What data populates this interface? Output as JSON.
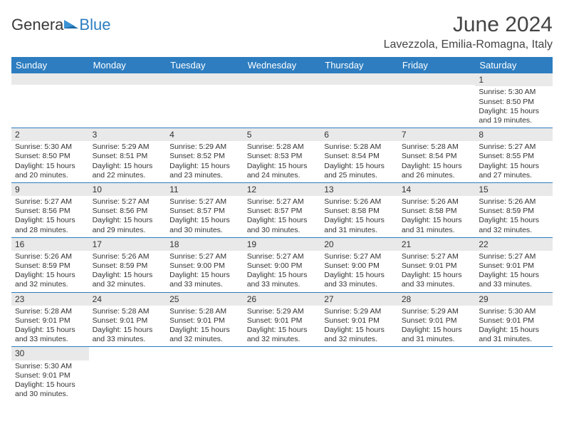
{
  "brand": {
    "part1": "Genera",
    "part2": "Blue"
  },
  "title": "June 2024",
  "location": "Lavezzola, Emilia-Romagna, Italy",
  "colors": {
    "header_bg": "#2d7dc0",
    "header_fg": "#ffffff",
    "daynum_bg": "#e9e9e9",
    "rule": "#2d7dc0",
    "text": "#3a3a3a",
    "logo_blue": "#2d7dc0",
    "page_bg": "#ffffff"
  },
  "typography": {
    "title_fontsize": 30,
    "location_fontsize": 16,
    "dayheader_fontsize": 13,
    "daynum_fontsize": 12,
    "body_fontsize": 10.5
  },
  "layout": {
    "columns": 7,
    "rows": 6,
    "first_weekday": "Sunday"
  },
  "day_headers": [
    "Sunday",
    "Monday",
    "Tuesday",
    "Wednesday",
    "Thursday",
    "Friday",
    "Saturday"
  ],
  "weeks": [
    [
      null,
      null,
      null,
      null,
      null,
      null,
      {
        "n": "1",
        "sunrise": "Sunrise: 5:30 AM",
        "sunset": "Sunset: 8:50 PM",
        "daylight": "Daylight: 15 hours and 19 minutes."
      }
    ],
    [
      {
        "n": "2",
        "sunrise": "Sunrise: 5:30 AM",
        "sunset": "Sunset: 8:50 PM",
        "daylight": "Daylight: 15 hours and 20 minutes."
      },
      {
        "n": "3",
        "sunrise": "Sunrise: 5:29 AM",
        "sunset": "Sunset: 8:51 PM",
        "daylight": "Daylight: 15 hours and 22 minutes."
      },
      {
        "n": "4",
        "sunrise": "Sunrise: 5:29 AM",
        "sunset": "Sunset: 8:52 PM",
        "daylight": "Daylight: 15 hours and 23 minutes."
      },
      {
        "n": "5",
        "sunrise": "Sunrise: 5:28 AM",
        "sunset": "Sunset: 8:53 PM",
        "daylight": "Daylight: 15 hours and 24 minutes."
      },
      {
        "n": "6",
        "sunrise": "Sunrise: 5:28 AM",
        "sunset": "Sunset: 8:54 PM",
        "daylight": "Daylight: 15 hours and 25 minutes."
      },
      {
        "n": "7",
        "sunrise": "Sunrise: 5:28 AM",
        "sunset": "Sunset: 8:54 PM",
        "daylight": "Daylight: 15 hours and 26 minutes."
      },
      {
        "n": "8",
        "sunrise": "Sunrise: 5:27 AM",
        "sunset": "Sunset: 8:55 PM",
        "daylight": "Daylight: 15 hours and 27 minutes."
      }
    ],
    [
      {
        "n": "9",
        "sunrise": "Sunrise: 5:27 AM",
        "sunset": "Sunset: 8:56 PM",
        "daylight": "Daylight: 15 hours and 28 minutes."
      },
      {
        "n": "10",
        "sunrise": "Sunrise: 5:27 AM",
        "sunset": "Sunset: 8:56 PM",
        "daylight": "Daylight: 15 hours and 29 minutes."
      },
      {
        "n": "11",
        "sunrise": "Sunrise: 5:27 AM",
        "sunset": "Sunset: 8:57 PM",
        "daylight": "Daylight: 15 hours and 30 minutes."
      },
      {
        "n": "12",
        "sunrise": "Sunrise: 5:27 AM",
        "sunset": "Sunset: 8:57 PM",
        "daylight": "Daylight: 15 hours and 30 minutes."
      },
      {
        "n": "13",
        "sunrise": "Sunrise: 5:26 AM",
        "sunset": "Sunset: 8:58 PM",
        "daylight": "Daylight: 15 hours and 31 minutes."
      },
      {
        "n": "14",
        "sunrise": "Sunrise: 5:26 AM",
        "sunset": "Sunset: 8:58 PM",
        "daylight": "Daylight: 15 hours and 31 minutes."
      },
      {
        "n": "15",
        "sunrise": "Sunrise: 5:26 AM",
        "sunset": "Sunset: 8:59 PM",
        "daylight": "Daylight: 15 hours and 32 minutes."
      }
    ],
    [
      {
        "n": "16",
        "sunrise": "Sunrise: 5:26 AM",
        "sunset": "Sunset: 8:59 PM",
        "daylight": "Daylight: 15 hours and 32 minutes."
      },
      {
        "n": "17",
        "sunrise": "Sunrise: 5:26 AM",
        "sunset": "Sunset: 8:59 PM",
        "daylight": "Daylight: 15 hours and 32 minutes."
      },
      {
        "n": "18",
        "sunrise": "Sunrise: 5:27 AM",
        "sunset": "Sunset: 9:00 PM",
        "daylight": "Daylight: 15 hours and 33 minutes."
      },
      {
        "n": "19",
        "sunrise": "Sunrise: 5:27 AM",
        "sunset": "Sunset: 9:00 PM",
        "daylight": "Daylight: 15 hours and 33 minutes."
      },
      {
        "n": "20",
        "sunrise": "Sunrise: 5:27 AM",
        "sunset": "Sunset: 9:00 PM",
        "daylight": "Daylight: 15 hours and 33 minutes."
      },
      {
        "n": "21",
        "sunrise": "Sunrise: 5:27 AM",
        "sunset": "Sunset: 9:01 PM",
        "daylight": "Daylight: 15 hours and 33 minutes."
      },
      {
        "n": "22",
        "sunrise": "Sunrise: 5:27 AM",
        "sunset": "Sunset: 9:01 PM",
        "daylight": "Daylight: 15 hours and 33 minutes."
      }
    ],
    [
      {
        "n": "23",
        "sunrise": "Sunrise: 5:28 AM",
        "sunset": "Sunset: 9:01 PM",
        "daylight": "Daylight: 15 hours and 33 minutes."
      },
      {
        "n": "24",
        "sunrise": "Sunrise: 5:28 AM",
        "sunset": "Sunset: 9:01 PM",
        "daylight": "Daylight: 15 hours and 33 minutes."
      },
      {
        "n": "25",
        "sunrise": "Sunrise: 5:28 AM",
        "sunset": "Sunset: 9:01 PM",
        "daylight": "Daylight: 15 hours and 32 minutes."
      },
      {
        "n": "26",
        "sunrise": "Sunrise: 5:29 AM",
        "sunset": "Sunset: 9:01 PM",
        "daylight": "Daylight: 15 hours and 32 minutes."
      },
      {
        "n": "27",
        "sunrise": "Sunrise: 5:29 AM",
        "sunset": "Sunset: 9:01 PM",
        "daylight": "Daylight: 15 hours and 32 minutes."
      },
      {
        "n": "28",
        "sunrise": "Sunrise: 5:29 AM",
        "sunset": "Sunset: 9:01 PM",
        "daylight": "Daylight: 15 hours and 31 minutes."
      },
      {
        "n": "29",
        "sunrise": "Sunrise: 5:30 AM",
        "sunset": "Sunset: 9:01 PM",
        "daylight": "Daylight: 15 hours and 31 minutes."
      }
    ],
    [
      {
        "n": "30",
        "sunrise": "Sunrise: 5:30 AM",
        "sunset": "Sunset: 9:01 PM",
        "daylight": "Daylight: 15 hours and 30 minutes."
      },
      null,
      null,
      null,
      null,
      null,
      null
    ]
  ]
}
